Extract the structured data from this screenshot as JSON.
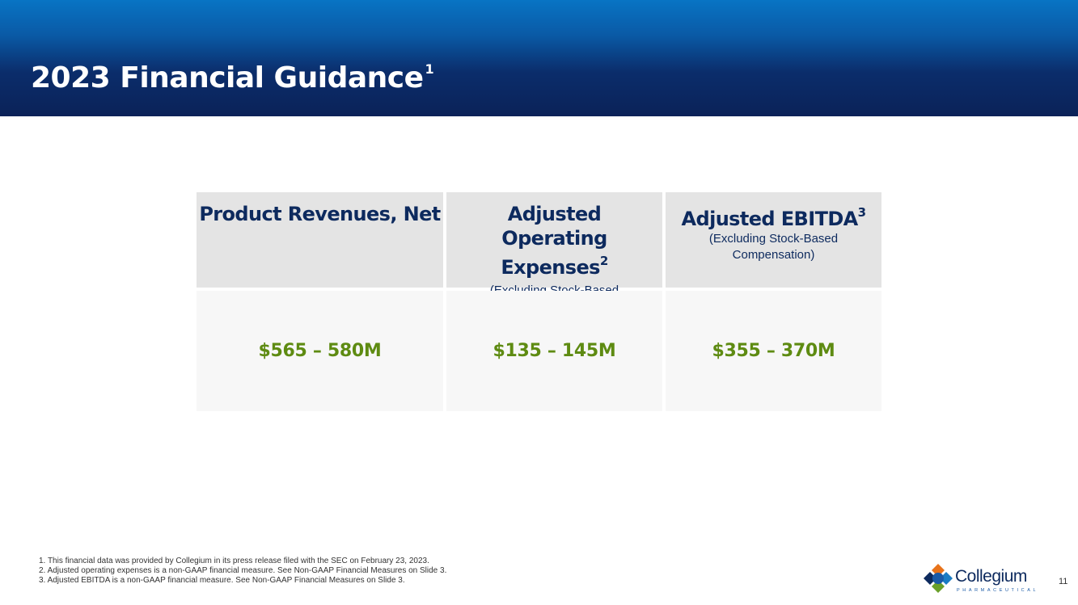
{
  "slide": {
    "title": "2023 Financial Guidance",
    "title_sup": "1",
    "page_number": "11"
  },
  "table": {
    "columns": [
      {
        "heading": "Product Revenues, Net",
        "heading_sup": "",
        "subheading": "",
        "value": "$565 – 580M"
      },
      {
        "heading": "Adjusted Operating Expenses",
        "heading_sup": "2",
        "subheading": "(Excluding Stock-Based Compensation)",
        "value": "$135 – 145M"
      },
      {
        "heading": "Adjusted EBITDA",
        "heading_sup": "3",
        "subheading": "(Excluding Stock-Based Compensation)",
        "value": "$355 – 370M"
      }
    ]
  },
  "footnotes": [
    "1. This financial data was provided by Collegium in its press release filed with the SEC on February 23, 2023.",
    "2. Adjusted operating expenses is a non-GAAP financial measure. See Non-GAAP Financial Measures on Slide 3.",
    "3. Adjusted EBITDA is a non-GAAP financial measure. See Non-GAAP Financial Measures on Slide 3."
  ],
  "logo": {
    "name": "Collegium",
    "sub": "PHARMACEUTICAL"
  },
  "colors": {
    "header_dark": "#0b2258",
    "header_light": "#0874c4",
    "heading_text": "#0d2a5e",
    "value_text": "#5e8b12",
    "header_cell_bg": "#e4e4e4",
    "value_cell_bg": "#f7f7f7"
  }
}
